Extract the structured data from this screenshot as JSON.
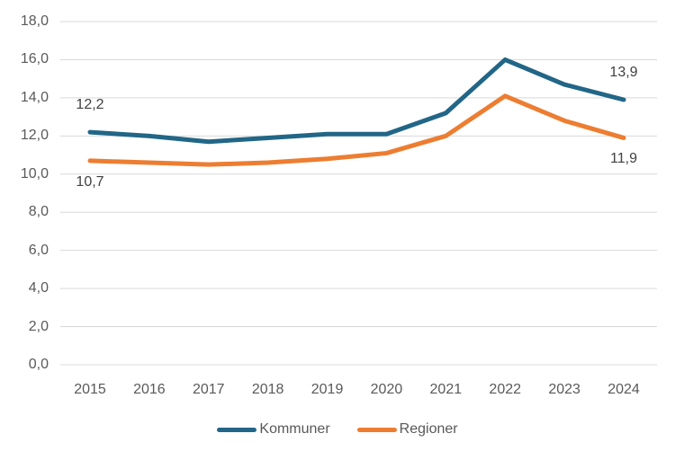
{
  "chart_data": {
    "type": "line",
    "title": "",
    "xlabel": "",
    "ylabel": "",
    "categories": [
      "2015",
      "2016",
      "2017",
      "2018",
      "2019",
      "2020",
      "2021",
      "2022",
      "2023",
      "2024"
    ],
    "series": [
      {
        "name": "Kommuner",
        "color": "#226687",
        "values": [
          12.2,
          12.0,
          11.7,
          11.9,
          12.1,
          12.1,
          13.2,
          16.0,
          14.7,
          13.9
        ]
      },
      {
        "name": "Regioner",
        "color": "#ED7D31",
        "values": [
          10.7,
          10.6,
          10.5,
          10.6,
          10.8,
          11.1,
          12.0,
          14.1,
          12.8,
          11.9
        ]
      }
    ],
    "ylim": [
      0,
      18
    ],
    "y_ticks": [
      {
        "value": 0,
        "label": "0,0"
      },
      {
        "value": 2,
        "label": "2,0"
      },
      {
        "value": 4,
        "label": "4,0"
      },
      {
        "value": 6,
        "label": "6,0"
      },
      {
        "value": 8,
        "label": "8,0"
      },
      {
        "value": 10,
        "label": "10,0"
      },
      {
        "value": 12,
        "label": "12,0"
      },
      {
        "value": 14,
        "label": "14,0"
      },
      {
        "value": 16,
        "label": "16,0"
      },
      {
        "value": 18,
        "label": "18,0"
      }
    ],
    "grid": true,
    "gridline_color": "#D9D9D9",
    "legend_position": "bottom",
    "annotations": [
      {
        "series_index": 0,
        "category_index": 0,
        "text": "12,2",
        "placement": "above"
      },
      {
        "series_index": 1,
        "category_index": 0,
        "text": "10,7",
        "placement": "below"
      },
      {
        "series_index": 0,
        "category_index": 9,
        "text": "13,9",
        "placement": "above"
      },
      {
        "series_index": 1,
        "category_index": 9,
        "text": "11,9",
        "placement": "below"
      }
    ]
  }
}
